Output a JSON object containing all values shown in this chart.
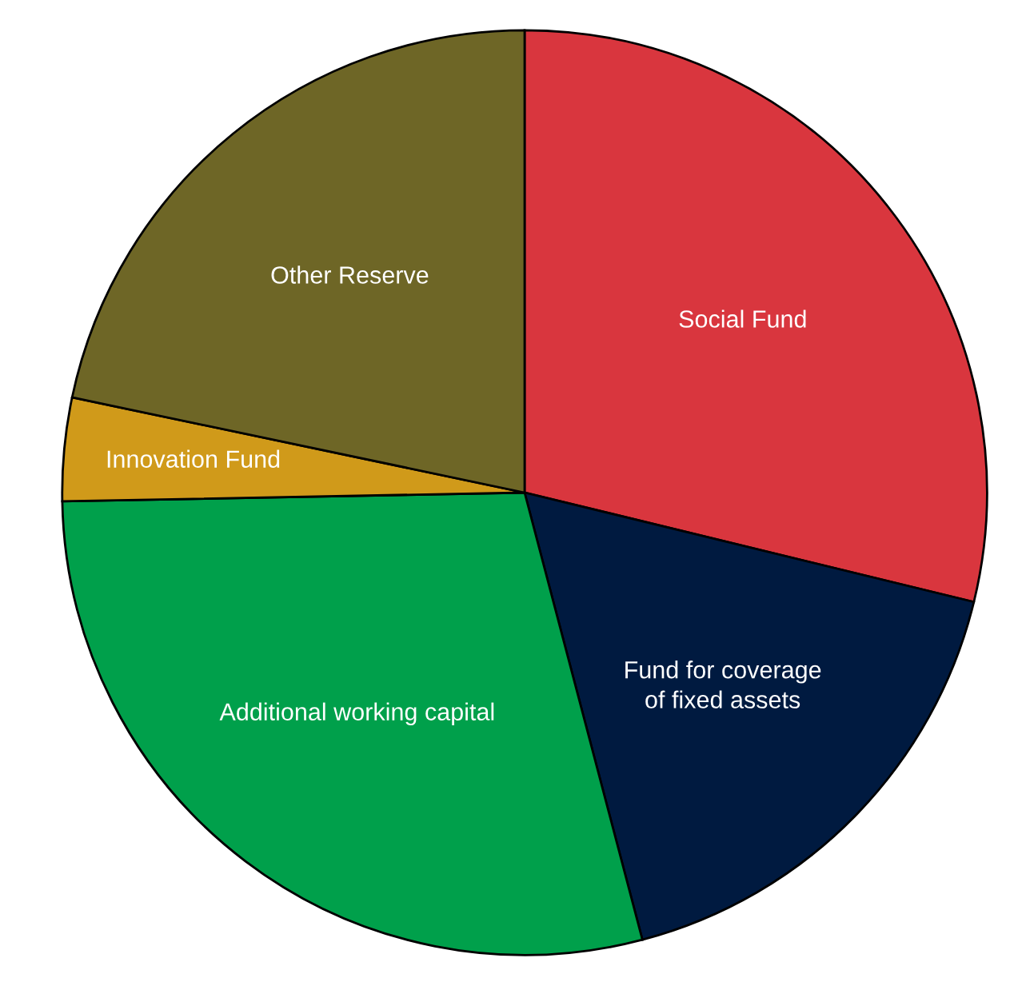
{
  "chart_data": {
    "type": "pie",
    "categories": [
      "Social Fund",
      "Fund for coverage\nof fixed assets",
      "Additional working capital",
      "Innovation Fund",
      "Other Reserve"
    ],
    "values": [
      28.8,
      17.1,
      28.8,
      3.6,
      21.7
    ],
    "colors": [
      "#d9363e",
      "#001a40",
      "#00a04b",
      "#d09a1a",
      "#6e6626"
    ]
  }
}
